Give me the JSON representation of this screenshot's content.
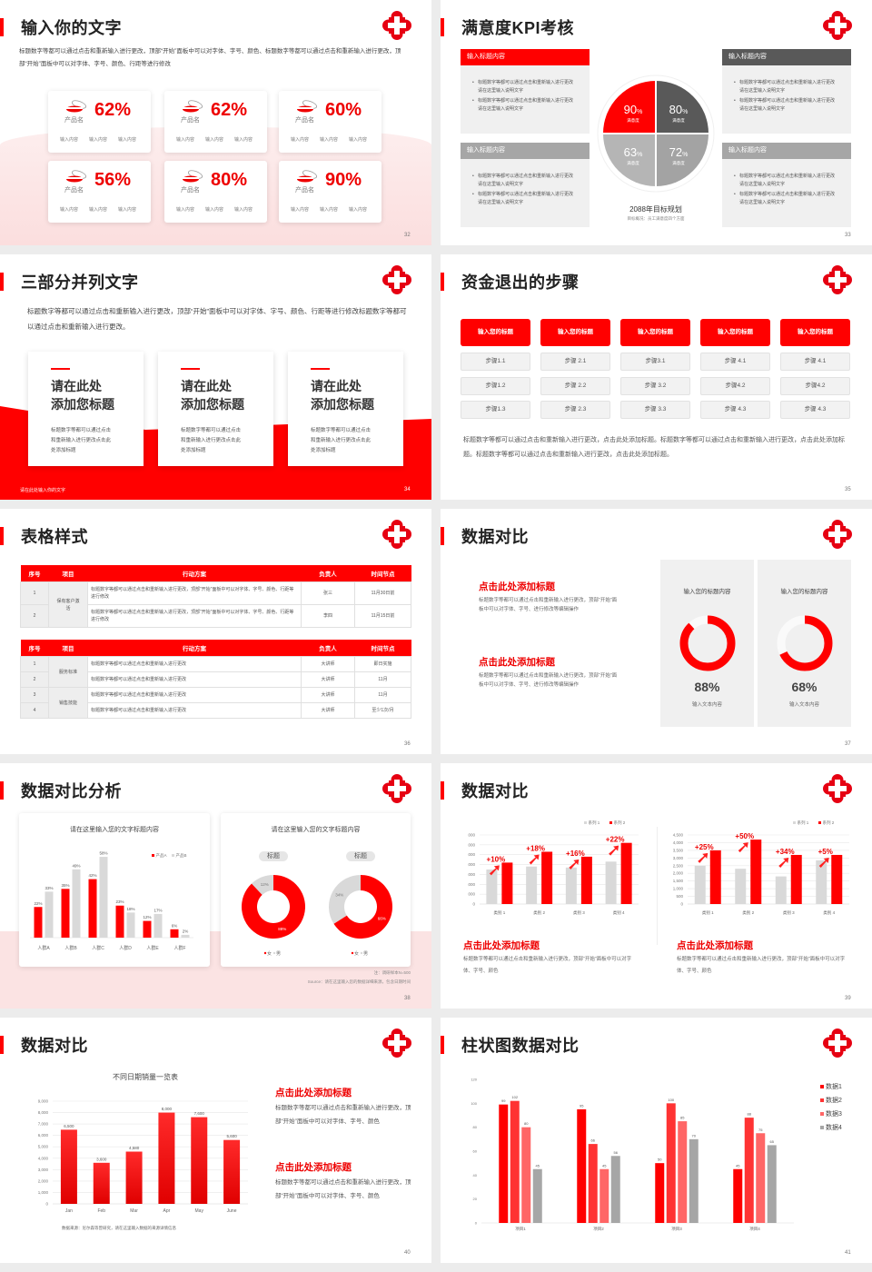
{
  "colors": {
    "accent": "#ff0000",
    "dark_gray": "#595959",
    "gray": "#a6a6a6",
    "light_gray": "#f0f0f0",
    "pink_bg": "#fbe3e3"
  },
  "logo_icon": "red-cross-logo",
  "slides": [
    {
      "title": "输入你的文字",
      "page": "32",
      "desc": "标题数字等都可以通过点击和重新输入进行更改，顶部“开始”面板中可以对字体、字号、颜色、标题数字等都可以通过点击和重新输入进行更改，顶部“开始”面板中可以对字体、字号、颜色、行距等进行修改",
      "cards": [
        {
          "icon": "pill-dish-icon",
          "name": "产品名",
          "value": "62%",
          "labels": [
            "输入内容",
            "输入内容",
            "输入内容"
          ]
        },
        {
          "icon": "pill-dish-icon",
          "name": "产品名",
          "value": "62%",
          "labels": [
            "输入内容",
            "输入内容",
            "输入内容"
          ]
        },
        {
          "icon": "pill-dish-icon",
          "name": "产品名",
          "value": "60%",
          "labels": [
            "输入内容",
            "输入内容",
            "输入内容"
          ]
        },
        {
          "icon": "pill-dish-icon",
          "name": "产品名",
          "value": "56%",
          "labels": [
            "输入内容",
            "输入内容",
            "输入内容"
          ]
        },
        {
          "icon": "pill-dish-icon",
          "name": "产品名",
          "value": "80%",
          "labels": [
            "输入内容",
            "输入内容",
            "输入内容"
          ]
        },
        {
          "icon": "pill-dish-icon",
          "name": "产品名",
          "value": "90%",
          "labels": [
            "输入内容",
            "输入内容",
            "输入内容"
          ]
        }
      ]
    },
    {
      "title": "满意度KPI考核",
      "page": "33",
      "boxes": [
        {
          "header": "输入标题内容",
          "color": "#ff0000",
          "bullets": [
            "标题数字等都可以通过点击和重新输入进行更改 请在这里输入说明文字",
            "标题数字等都可以通过点击和重新输入进行更改 请在这里输入说明文字"
          ]
        },
        {
          "header": "输入标题内容",
          "color": "#595959",
          "bullets": [
            "标题数字等都可以通过点击和重新输入进行更改 请在这里输入说明文字",
            "标题数字等都可以通过点击和重新输入进行更改 请在这里输入说明文字"
          ]
        },
        {
          "header": "输入标题内容",
          "color": "#a6a6a6",
          "bullets": [
            "标题数字等都可以通过点击和重新输入进行更改 请在这里输入说明文字",
            "标题数字等都可以通过点击和重新输入进行更改 请在这里输入说明文字"
          ]
        },
        {
          "header": "输入标题内容",
          "color": "#a6a6a6",
          "bullets": [
            "标题数字等都可以通过点击和重新输入进行更改 请在这里输入说明文字",
            "标题数字等都可以通过点击和重新输入进行更改 请在这里输入说明文字"
          ]
        }
      ],
      "quadrants": [
        {
          "value": "90",
          "unit": "%",
          "label": "满意度",
          "color": "#ff0000"
        },
        {
          "value": "80",
          "unit": "%",
          "label": "满意度",
          "color": "#595959"
        },
        {
          "value": "63",
          "unit": "%",
          "label": "满意度",
          "color": "#b5b5b5"
        },
        {
          "value": "72",
          "unit": "%",
          "label": "满意度",
          "color": "#a3a3a3"
        }
      ],
      "plan_title": "2088年目标规划",
      "plan_sub": "目标概况：员工满意度四个方面"
    },
    {
      "title": "三部分并列文字",
      "page": "34",
      "desc": "标题数字等都可以通过点击和重新输入进行更改，顶部“开始”面板中可以对字体、字号、颜色、行距等进行修改标题数字等都可以通过点击和重新输入进行更改。",
      "cards": [
        {
          "title_lines": [
            "请在此处",
            "添加您标题"
          ],
          "body": "标题数字等都可以通过点击和重新输入进行更改点击此处添加标题"
        },
        {
          "title_lines": [
            "请在此处",
            "添加您标题"
          ],
          "body": "标题数字等都可以通过点击和重新输入进行更改点击此处添加标题"
        },
        {
          "title_lines": [
            "请在此处",
            "添加您标题"
          ],
          "body": "标题数字等都可以通过点击和重新输入进行更改点击此处添加标题"
        }
      ],
      "footer": "请在此处输入你的文字"
    },
    {
      "title": "资金退出的步骤",
      "page": "35",
      "columns": [
        {
          "header": "输入您的标题",
          "steps": [
            "步骤1.1",
            "步骤1.2",
            "步骤1.3"
          ]
        },
        {
          "header": "输入您的标题",
          "steps": [
            "步骤 2.1",
            "步骤 2.2",
            "步骤 2.3"
          ]
        },
        {
          "header": "输入您的标题",
          "steps": [
            "步骤3.1",
            "步骤 3.2",
            "步骤 3.3"
          ]
        },
        {
          "header": "输入您的标题",
          "steps": [
            "步骤 4.1",
            "步骤4.2",
            "步骤 4.3"
          ]
        },
        {
          "header": "输入您的标题",
          "steps": [
            "步骤 4.1",
            "步骤4.2",
            "步骤 4.3"
          ]
        }
      ],
      "text": "标题数字等都可以通过点击和重新输入进行更改，点击此处添加标题。标题数字等都可以通过点击和重新输入进行更改，点击此处添加标题。标题数字等都可以通过点击和重新输入进行更改，点击此处添加标题。"
    },
    {
      "title": "表格样式",
      "page": "36",
      "headers": [
        "序号",
        "项目",
        "行动方案",
        "负责人",
        "时间节点"
      ],
      "table1": {
        "groups": [
          {
            "item": "保有客户激活",
            "rows": [
              {
                "no": "1",
                "plan": "标题数字等都可以通过点击和重新输入进行更改，顶部“开始”面板中可以对字体、字号、颜色、行距等进行修改",
                "owner": "张三",
                "time": "11月30日前"
              },
              {
                "no": "2",
                "plan": "标题数字等都可以通过点击和重新输入进行更改，顶部“开始”面板中可以对字体、字号、颜色、行距等进行修改",
                "owner": "李四",
                "time": "11月15日前"
              }
            ]
          }
        ]
      },
      "table2": {
        "groups": [
          {
            "item": "服务标准",
            "rows": [
              {
                "no": "1",
                "plan": "标题数字等都可以通过点击和重新输入进行更改",
                "owner": "大讲师",
                "time": "即日实施"
              },
              {
                "no": "2",
                "plan": "标题数字等都可以通过点击和重新输入进行更改",
                "owner": "大讲师",
                "time": "11月"
              }
            ]
          },
          {
            "item": "销售技能",
            "rows": [
              {
                "no": "3",
                "plan": "标题数字等都可以通过点击和重新输入进行更改",
                "owner": "大讲师",
                "time": "11月"
              },
              {
                "no": "4",
                "plan": "标题数字等都可以通过点击和重新输入进行更改",
                "owner": "大讲师",
                "time": "至少1次/月"
              }
            ]
          }
        ]
      }
    },
    {
      "title": "数据对比",
      "page": "37",
      "blocks": [
        {
          "heading": "点击此处添加标题",
          "body": "标题数字等都可以通过点击和重新输入进行更改，顶部“开始”面板中可以对字体、字号、进行修改等编辑操作"
        },
        {
          "heading": "点击此处添加标题",
          "body": "标题数字等都可以通过点击和重新输入进行更改，顶部“开始”面板中可以对字体、字号、进行修改等编辑操作"
        }
      ],
      "rings": [
        {
          "title": "输入您的标题内容",
          "value": "88%",
          "label": "输入文本内容"
        },
        {
          "title": "输入您的标题内容",
          "value": "68%",
          "label": "输入文本内容"
        }
      ]
    },
    {
      "title": "数据对比分析",
      "page": "38",
      "note": "注：调研样本N=500",
      "source": "Source：请在这里输入您的数据详细来源，包含日期时间"
    },
    {
      "title": "数据对比",
      "page": "39",
      "blocks": [
        {
          "heading": "点击此处添加标题",
          "body": "标题数字等都可以通过点击和重新输入进行更改，顶部“开始”面板中可以对字体、字号、颜色"
        },
        {
          "heading": "点击此处添加标题",
          "body": "标题数字等都可以通过点击和重新输入进行更改，顶部“开始”面板中可以对字体、字号、颜色"
        }
      ]
    },
    {
      "title": "数据对比",
      "page": "40",
      "blocks": [
        {
          "heading": "点击此处添加标题",
          "body": "标题数字等都可以通过点击和重新输入进行更改，顶部“开始”面板中可以对字体、字号、颜色"
        },
        {
          "heading": "点击此处添加标题",
          "body": "标题数字等都可以通过点击和重新输入进行更改，顶部“开始”面板中可以对字体、字号、颜色"
        }
      ]
    },
    {
      "title": "柱状图数据对比",
      "page": "41"
    }
  ],
  "chart_data": [
    {
      "type": "bar",
      "title": "请在这里输入您的文字标题内容",
      "categories": [
        "人群A",
        "人群B",
        "人群C",
        "人群D",
        "人群E",
        "人群F"
      ],
      "series": [
        {
          "name": "产品A",
          "values": [
            22,
            35,
            42,
            23,
            12,
            6
          ],
          "color": "#ff0000"
        },
        {
          "name": "产品B",
          "values": [
            33,
            49,
            58,
            18,
            17,
            2
          ],
          "color": "#d9d9d9"
        }
      ],
      "unit": "%",
      "ylim": [
        0,
        60
      ],
      "grid": false,
      "legend": "top-right"
    },
    {
      "type": "pie",
      "title": "请在这里输入您的文字标题内容",
      "donuts": [
        {
          "label": "标题",
          "slices": [
            {
              "name": "女",
              "value": 88,
              "color": "#ff0000"
            },
            {
              "name": "男",
              "value": 12,
              "color": "#d9d9d9"
            }
          ]
        },
        {
          "label": "标题",
          "slices": [
            {
              "name": "女",
              "value": 66,
              "color": "#ff0000"
            },
            {
              "name": "男",
              "value": 34,
              "color": "#d9d9d9"
            }
          ]
        }
      ],
      "unit": "%",
      "legend": "bottom"
    },
    {
      "type": "bar",
      "categories": [
        "类别 1",
        "类别 2",
        "类别 3",
        "类别 4"
      ],
      "series": [
        {
          "name": "系列 1",
          "values": [
            3500,
            3800,
            3700,
            4300
          ],
          "color": "#d9d9d9"
        },
        {
          "name": "系列 2",
          "values": [
            4200,
            5300,
            4800,
            6200
          ],
          "color": "#ff0000"
        }
      ],
      "annotations": [
        "+10%",
        "+18%",
        "+16%",
        "+22%"
      ],
      "ylim": [
        0,
        7000
      ],
      "yticks": [
        0,
        1000,
        2000,
        3000,
        4000,
        5000,
        6000,
        7000
      ],
      "grid": true,
      "legend": "top-right"
    },
    {
      "type": "bar",
      "categories": [
        "类别 1",
        "类别 2",
        "类别 3",
        "类别 4"
      ],
      "series": [
        {
          "name": "系列 1",
          "values": [
            2500,
            2300,
            1800,
            2850
          ],
          "color": "#d9d9d9"
        },
        {
          "name": "系列 2",
          "values": [
            3500,
            4200,
            3200,
            3200
          ],
          "color": "#ff0000"
        }
      ],
      "annotations": [
        "+25%",
        "+50%",
        "+34%",
        "+5%"
      ],
      "ylim": [
        0,
        4500
      ],
      "yticks": [
        0,
        500,
        1000,
        1500,
        2000,
        2500,
        3000,
        3500,
        4000,
        4500
      ],
      "grid": true,
      "legend": "top-right"
    },
    {
      "type": "bar",
      "title": "不同日期销量一览表",
      "categories": [
        "Jan",
        "Feb",
        "Mar",
        "Apr",
        "May",
        "June"
      ],
      "values": [
        6500,
        3600,
        4580,
        8000,
        7600,
        5600
      ],
      "color": "#ff0000",
      "ylim": [
        0,
        9000
      ],
      "yticks": [
        0,
        1000,
        2000,
        3000,
        4000,
        5000,
        6000,
        7000,
        8000,
        9000
      ],
      "grid": true,
      "source": "数据来源：尼尔森等曾研究，请在这里输入数据的来源详情信息"
    },
    {
      "type": "bar",
      "categories": [
        "项目1",
        "项目2",
        "项目3",
        "项目4"
      ],
      "series": [
        {
          "name": "数据1",
          "values": [
            99,
            95,
            50,
            45
          ],
          "color": "#ff0000"
        },
        {
          "name": "数据2",
          "values": [
            102,
            66,
            100,
            88
          ],
          "color": "#ff3333"
        },
        {
          "name": "数据3",
          "values": [
            80,
            45,
            85,
            75
          ],
          "color": "#ff6666"
        },
        {
          "name": "数据4",
          "values": [
            45,
            56,
            70,
            65
          ],
          "color": "#a6a6a6"
        }
      ],
      "ylim": [
        0,
        120
      ],
      "yticks": [
        0,
        20,
        40,
        60,
        80,
        100,
        120
      ],
      "grid": false,
      "legend": "right"
    }
  ]
}
